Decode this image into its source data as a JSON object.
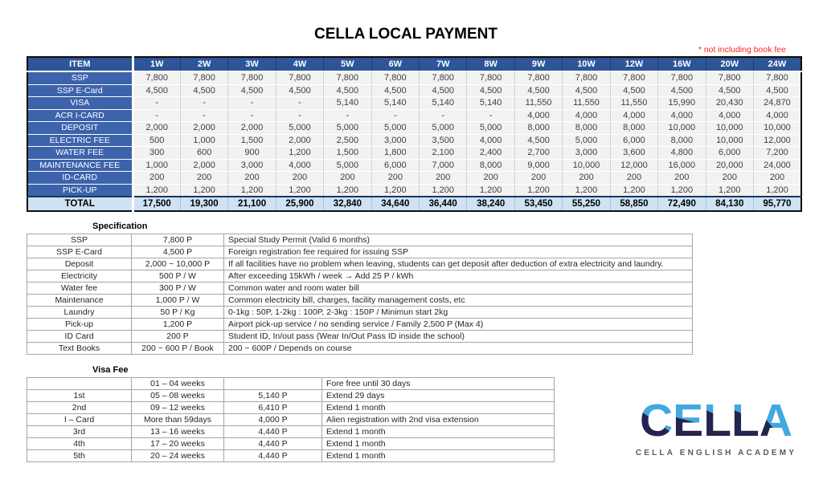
{
  "title": "CELLA LOCAL PAYMENT",
  "note": "* not including book fee",
  "main_table": {
    "item_header": "ITEM",
    "columns": [
      "1W",
      "2W",
      "3W",
      "4W",
      "5W",
      "6W",
      "7W",
      "8W",
      "9W",
      "10W",
      "12W",
      "16W",
      "20W",
      "24W"
    ],
    "rows": [
      {
        "label": "SSP",
        "values": [
          "7,800",
          "7,800",
          "7,800",
          "7,800",
          "7,800",
          "7,800",
          "7,800",
          "7,800",
          "7,800",
          "7,800",
          "7,800",
          "7,800",
          "7,800",
          "7,800"
        ]
      },
      {
        "label": "SSP E-Card",
        "values": [
          "4,500",
          "4,500",
          "4,500",
          "4,500",
          "4,500",
          "4,500",
          "4,500",
          "4,500",
          "4,500",
          "4,500",
          "4,500",
          "4,500",
          "4,500",
          "4,500"
        ]
      },
      {
        "label": "VISA",
        "values": [
          "-",
          "-",
          "-",
          "-",
          "5,140",
          "5,140",
          "5,140",
          "5,140",
          "11,550",
          "11,550",
          "11,550",
          "15,990",
          "20,430",
          "24,870"
        ]
      },
      {
        "label": "ACR I-CARD",
        "values": [
          "-",
          "-",
          "-",
          "-",
          "-",
          "-",
          "-",
          "-",
          "4,000",
          "4,000",
          "4,000",
          "4,000",
          "4,000",
          "4,000"
        ]
      },
      {
        "label": "DEPOSIT",
        "values": [
          "2,000",
          "2,000",
          "2,000",
          "5,000",
          "5,000",
          "5,000",
          "5,000",
          "5,000",
          "8,000",
          "8,000",
          "8,000",
          "10,000",
          "10,000",
          "10,000"
        ]
      },
      {
        "label": "ELECTRIC FEE",
        "values": [
          "500",
          "1,000",
          "1,500",
          "2,000",
          "2,500",
          "3,000",
          "3,500",
          "4,000",
          "4,500",
          "5,000",
          "6,000",
          "8,000",
          "10,000",
          "12,000"
        ]
      },
      {
        "label": "WATER FEE",
        "values": [
          "300",
          "600",
          "900",
          "1,200",
          "1,500",
          "1,800",
          "2,100",
          "2,400",
          "2,700",
          "3,000",
          "3,600",
          "4,800",
          "6,000",
          "7,200"
        ]
      },
      {
        "label": "MAINTENANCE FEE",
        "values": [
          "1,000",
          "2,000",
          "3,000",
          "4,000",
          "5,000",
          "6,000",
          "7,000",
          "8,000",
          "9,000",
          "10,000",
          "12,000",
          "16,000",
          "20,000",
          "24,000"
        ]
      },
      {
        "label": "ID-CARD",
        "values": [
          "200",
          "200",
          "200",
          "200",
          "200",
          "200",
          "200",
          "200",
          "200",
          "200",
          "200",
          "200",
          "200",
          "200"
        ]
      },
      {
        "label": "PICK-UP",
        "values": [
          "1,200",
          "1,200",
          "1,200",
          "1,200",
          "1,200",
          "1,200",
          "1,200",
          "1,200",
          "1,200",
          "1,200",
          "1,200",
          "1,200",
          "1,200",
          "1,200"
        ]
      }
    ],
    "total": {
      "label": "TOTAL",
      "values": [
        "17,500",
        "19,300",
        "21,100",
        "25,900",
        "32,840",
        "34,640",
        "36,440",
        "38,240",
        "53,450",
        "55,250",
        "58,850",
        "72,490",
        "84,130",
        "95,770"
      ]
    }
  },
  "specification": {
    "title": "Specification",
    "rows": [
      {
        "item": "SSP",
        "price": "7,800 P",
        "desc": "Special Study Permit (Valid 6 months)"
      },
      {
        "item": "SSP E-Card",
        "price": "4,500 P",
        "desc": "Foreign registration fee required for issuing SSP"
      },
      {
        "item": "Deposit",
        "price": "2,000 ~ 10,000 P",
        "desc": "If all facilities have no problem when leaving, students can get deposit after deduction of extra electricity and laundry."
      },
      {
        "item": "Electricity",
        "price": "500 P / W",
        "desc": "After exceeding 15kWh / week → Add 25 P / kWh"
      },
      {
        "item": "Water fee",
        "price": "300 P / W",
        "desc": "Common water and room water bill"
      },
      {
        "item": "Maintenance",
        "price": "1,000 P / W",
        "desc": "Common electricity bill, charges, facility management costs, etc"
      },
      {
        "item": "Laundry",
        "price": "50 P / Kg",
        "desc": "0-1kg : 50P, 1-2kg : 100P, 2-3kg : 150P / Minimun start 2kg"
      },
      {
        "item": "Pick-up",
        "price": "1,200 P",
        "desc": "Airport pick-up service / no sending service / Family 2,500 P (Max 4)"
      },
      {
        "item": "ID Card",
        "price": "200 P",
        "desc": "Student ID, In/out pass (Wear In/Out Pass ID inside the school)"
      },
      {
        "item": "Text Books",
        "price": "200 ~ 600 P / Book",
        "desc": "200 ~ 600P / Depends on course"
      }
    ]
  },
  "visa_fee": {
    "title": "Visa Fee",
    "rows": [
      {
        "ord": "",
        "weeks": "01 – 04 weeks",
        "price": "",
        "desc": "Fore free until 30 days"
      },
      {
        "ord": "1st",
        "weeks": "05 – 08 weeks",
        "price": "5,140 P",
        "desc": "Extend 29 days"
      },
      {
        "ord": "2nd",
        "weeks": "09 – 12 weeks",
        "price": "6,410 P",
        "desc": "Extend 1 month"
      },
      {
        "ord": "I – Card",
        "weeks": "More than 59days",
        "price": "4,000 P",
        "desc": "Alien registration with 2nd visa extension"
      },
      {
        "ord": "3rd",
        "weeks": "13 – 16 weeks",
        "price": "4,440 P",
        "desc": "Extend 1 month"
      },
      {
        "ord": "4th",
        "weeks": "17 – 20 weeks",
        "price": "4,440 P",
        "desc": "Extend 1 month"
      },
      {
        "ord": "5th",
        "weeks": "20 – 24 weeks",
        "price": "4,440 P",
        "desc": "Extend 1 month"
      }
    ]
  },
  "logo": {
    "wordmark": "CELLA",
    "subtitle": "CELLA ENGLISH ACADEMY",
    "accent_blue": "#41A8E0",
    "accent_navy": "#232450"
  }
}
